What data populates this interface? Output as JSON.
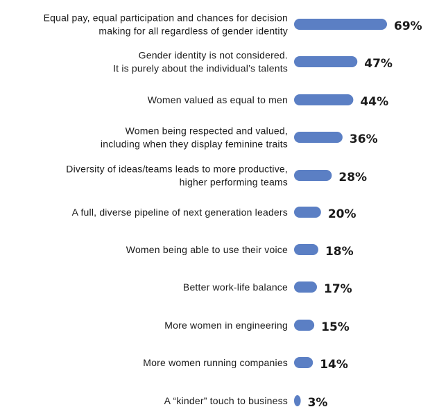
{
  "colors": {
    "bar": "#5b7fc4",
    "text": "#1a1a1a",
    "background": "#ffffff"
  },
  "chart_data": {
    "type": "bar",
    "orientation": "horizontal",
    "title": "",
    "xlabel": "",
    "ylabel": "",
    "xlim": [
      0,
      69
    ],
    "grid": false,
    "legend": "none",
    "value_suffix": "%",
    "categories": [
      [
        "Equal pay, equal participation and chances for decision",
        "making for all regardless of gender identity"
      ],
      [
        "Gender identity is not considered.",
        "It is purely about the individual’s talents"
      ],
      [
        "Women valued as equal to men"
      ],
      [
        "Women being respected and valued,",
        "including when they display feminine traits"
      ],
      [
        "Diversity of ideas/teams leads to more productive,",
        "higher performing teams"
      ],
      [
        "A full, diverse pipeline of next generation leaders"
      ],
      [
        "Women being able to use their voice"
      ],
      [
        "Better work-life balance"
      ],
      [
        "More women in engineering"
      ],
      [
        "More women running companies"
      ],
      [
        "A “kinder” touch to business"
      ]
    ],
    "values": [
      69,
      47,
      44,
      36,
      28,
      20,
      18,
      17,
      15,
      14,
      3
    ],
    "value_labels": [
      "69%",
      "47%",
      "44%",
      "36%",
      "28%",
      "20%",
      "18%",
      "17%",
      "15%",
      "14%",
      "3%"
    ]
  }
}
